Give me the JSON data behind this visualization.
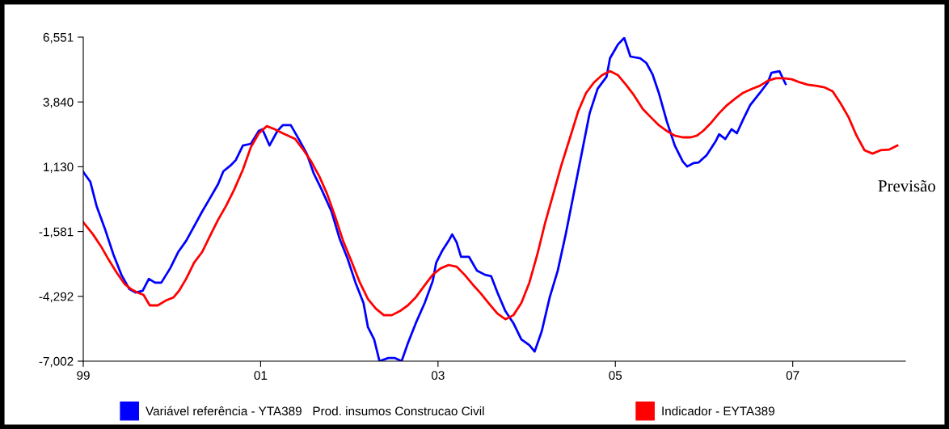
{
  "chart_data": {
    "type": "line",
    "xlim": [
      1999,
      2008.27
    ],
    "xticks": [
      {
        "value": 1999,
        "label": "99"
      },
      {
        "value": 2001,
        "label": "01"
      },
      {
        "value": 2003,
        "label": "03"
      },
      {
        "value": 2005,
        "label": "05"
      },
      {
        "value": 2007,
        "label": "07"
      }
    ],
    "ylim": [
      -7002,
      6551
    ],
    "yticks": [
      {
        "value": -7002,
        "label": "-7,002"
      },
      {
        "value": -4292,
        "label": "-4,292"
      },
      {
        "value": -1581,
        "label": "-1,581"
      },
      {
        "value": 1130,
        "label": "1,130"
      },
      {
        "value": 3840,
        "label": "3,840"
      },
      {
        "value": 6551,
        "label": "6,551"
      }
    ],
    "grid": false,
    "legend": "bottom",
    "annotations": [
      "Previsão"
    ],
    "series": [
      {
        "name": "Variável referência - YTA389   Prod. insumos Construcao Civil",
        "color": "#0000ff",
        "x": [
          1999.0,
          1999.08,
          1999.15,
          1999.25,
          1999.34,
          1999.43,
          1999.52,
          1999.59,
          1999.67,
          1999.74,
          1999.81,
          1999.88,
          1999.98,
          2000.07,
          2000.16,
          2000.25,
          2000.34,
          2000.43,
          2000.52,
          2000.58,
          2000.66,
          2000.72,
          2000.8,
          2000.89,
          2000.98,
          2001.02,
          2001.1,
          2001.19,
          2001.25,
          2001.34,
          2001.43,
          2001.52,
          2001.6,
          2001.69,
          2001.8,
          2001.89,
          2001.98,
          2002.07,
          2002.16,
          2002.21,
          2002.28,
          2002.34,
          2002.44,
          2002.51,
          2002.59,
          2002.66,
          2002.75,
          2002.85,
          2002.94,
          2002.98,
          2003.05,
          2003.12,
          2003.16,
          2003.21,
          2003.26,
          2003.35,
          2003.44,
          2003.53,
          2003.6,
          2003.67,
          2003.76,
          2003.85,
          2003.94,
          2004.03,
          2004.09,
          2004.17,
          2004.26,
          2004.35,
          2004.44,
          2004.53,
          2004.62,
          2004.71,
          2004.8,
          2004.9,
          2004.94,
          2005.03,
          2005.1,
          2005.17,
          2005.28,
          2005.35,
          2005.42,
          2005.49,
          2005.58,
          2005.67,
          2005.76,
          2005.81,
          2005.88,
          2005.94,
          2006.03,
          2006.13,
          2006.17,
          2006.24,
          2006.31,
          2006.37,
          2006.44,
          2006.52,
          2006.63,
          2006.72,
          2006.76,
          2006.85,
          2006.92
        ],
        "values": [
          910,
          500,
          -510,
          -1530,
          -2540,
          -3390,
          -3990,
          -4130,
          -4060,
          -3560,
          -3720,
          -3720,
          -3120,
          -2440,
          -1970,
          -1360,
          -750,
          -180,
          400,
          940,
          1180,
          1410,
          2020,
          2090,
          2630,
          2700,
          2020,
          2630,
          2870,
          2870,
          2290,
          1680,
          840,
          160,
          -750,
          -1870,
          -2710,
          -3720,
          -4570,
          -5580,
          -6090,
          -7000,
          -6870,
          -6870,
          -7000,
          -6260,
          -5410,
          -4570,
          -3660,
          -2880,
          -2370,
          -1970,
          -1700,
          -2030,
          -2640,
          -2640,
          -3220,
          -3390,
          -3450,
          -4130,
          -4910,
          -5410,
          -6090,
          -6330,
          -6600,
          -5750,
          -4330,
          -3220,
          -1700,
          -10,
          1680,
          3370,
          4390,
          4890,
          5670,
          6250,
          6520,
          5740,
          5670,
          5470,
          4990,
          4220,
          3030,
          2020,
          1350,
          1140,
          1280,
          1310,
          1620,
          2190,
          2490,
          2290,
          2700,
          2530,
          3100,
          3710,
          4220,
          4660,
          5060,
          5130,
          4590
        ]
      },
      {
        "name": "Indicador - EYTA389",
        "color": "#ff0000",
        "x": [
          1999.0,
          1999.11,
          1999.2,
          1999.29,
          1999.38,
          1999.47,
          1999.54,
          1999.61,
          1999.68,
          1999.75,
          1999.84,
          1999.93,
          2000.02,
          2000.08,
          2000.16,
          2000.25,
          2000.34,
          2000.43,
          2000.52,
          2000.61,
          2000.7,
          2000.8,
          2000.89,
          2000.98,
          2001.07,
          2001.16,
          2001.25,
          2001.39,
          2001.48,
          2001.57,
          2001.66,
          2001.75,
          2001.84,
          2001.93,
          2002.03,
          2002.12,
          2002.21,
          2002.3,
          2002.39,
          2002.48,
          2002.57,
          2002.66,
          2002.75,
          2002.85,
          2002.94,
          2003.03,
          2003.12,
          2003.21,
          2003.3,
          2003.39,
          2003.48,
          2003.57,
          2003.67,
          2003.76,
          2003.85,
          2003.94,
          2004.03,
          2004.12,
          2004.21,
          2004.3,
          2004.39,
          2004.49,
          2004.58,
          2004.67,
          2004.76,
          2004.85,
          2004.94,
          2005.03,
          2005.12,
          2005.21,
          2005.31,
          2005.4,
          2005.49,
          2005.58,
          2005.67,
          2005.76,
          2005.85,
          2005.92,
          2005.99,
          2006.08,
          2006.17,
          2006.26,
          2006.35,
          2006.44,
          2006.54,
          2006.63,
          2006.72,
          2006.81,
          2006.9,
          2006.99,
          2007.08,
          2007.17,
          2007.26,
          2007.36,
          2007.45,
          2007.54,
          2007.63,
          2007.72,
          2007.81,
          2007.9,
          2007.99,
          2008.09,
          2008.18
        ],
        "values": [
          -1190,
          -1700,
          -2200,
          -2780,
          -3320,
          -3790,
          -3990,
          -4130,
          -4230,
          -4670,
          -4670,
          -4470,
          -4330,
          -4060,
          -3560,
          -2880,
          -2440,
          -1760,
          -1090,
          -510,
          160,
          1010,
          1950,
          2530,
          2830,
          2700,
          2530,
          2290,
          1850,
          1350,
          740,
          -10,
          -950,
          -1970,
          -2880,
          -3720,
          -4400,
          -4810,
          -5080,
          -5080,
          -4910,
          -4670,
          -4330,
          -3830,
          -3390,
          -3120,
          -2980,
          -3050,
          -3390,
          -3790,
          -4160,
          -4570,
          -5010,
          -5250,
          -5080,
          -4570,
          -3720,
          -2540,
          -1190,
          -10,
          1180,
          2360,
          3440,
          4220,
          4660,
          4960,
          5130,
          4960,
          4560,
          4120,
          3540,
          3200,
          2870,
          2630,
          2430,
          2360,
          2360,
          2430,
          2630,
          2970,
          3370,
          3710,
          3980,
          4220,
          4390,
          4520,
          4730,
          4830,
          4830,
          4790,
          4660,
          4560,
          4520,
          4450,
          4290,
          3780,
          3200,
          2430,
          1820,
          1680,
          1820,
          1850,
          2020
        ]
      }
    ]
  }
}
